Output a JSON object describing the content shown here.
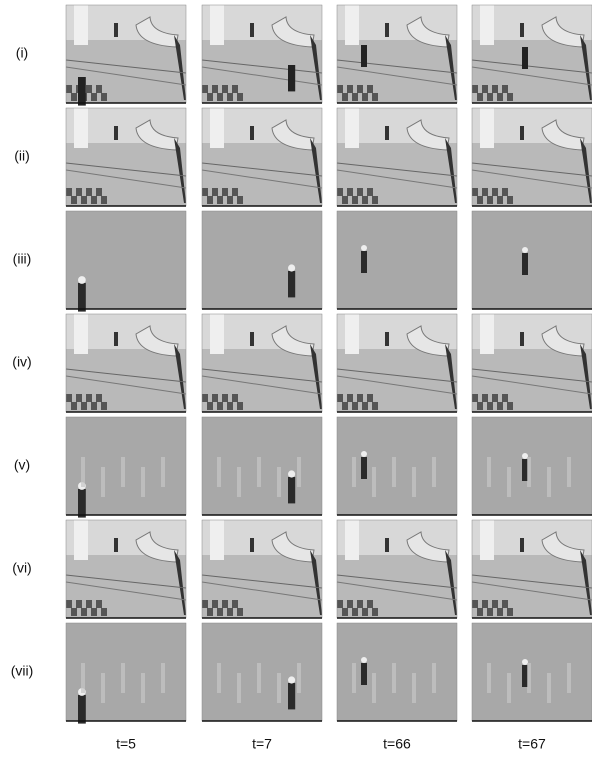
{
  "rows": [
    "(i)",
    "(ii)",
    "(iii)",
    "(iv)",
    "(v)",
    "(vi)",
    "(vii)"
  ],
  "columns": [
    "t=5",
    "t=7",
    "t=66",
    "t=67"
  ]
}
